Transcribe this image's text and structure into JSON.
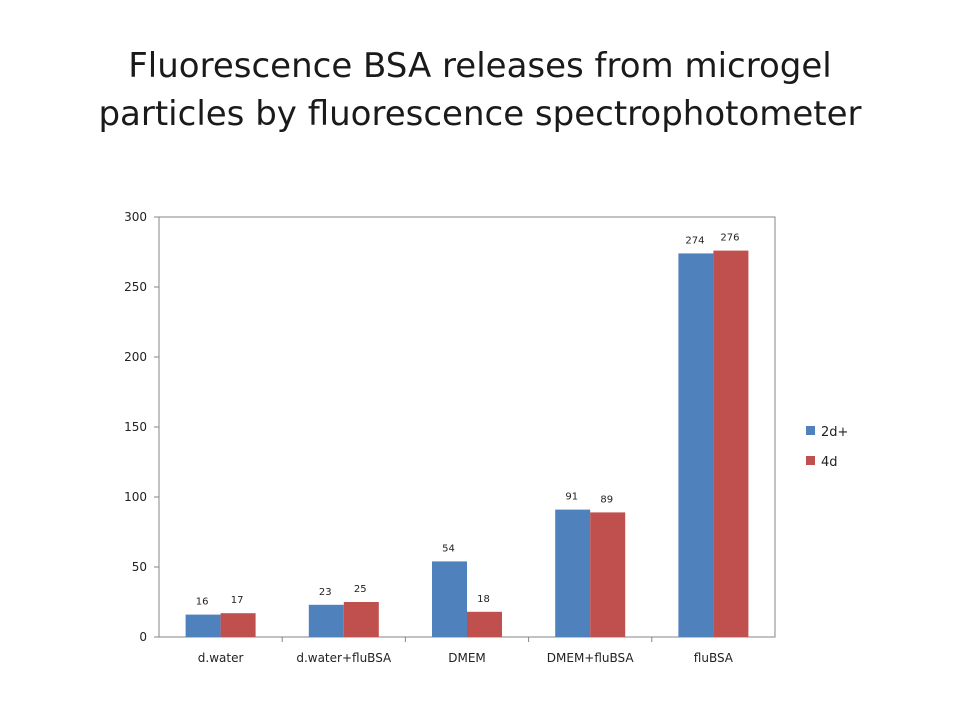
{
  "title": {
    "line1": "Fluorescence BSA releases from microgel",
    "line2": "particles by fluorescence spectrophotometer"
  },
  "chart_data": {
    "type": "bar",
    "title": "Fluorescence BSA releases from microgel particles by fluorescence spectrophotometer",
    "categories": [
      "d.water",
      "d.water+fluBSA",
      "DMEM",
      "DMEM+fluBSA",
      "fluBSA"
    ],
    "series": [
      {
        "name": "2d+",
        "color": "#4f81bd",
        "values": [
          16,
          23,
          54,
          91,
          274
        ]
      },
      {
        "name": "4d",
        "color": "#c0504d",
        "values": [
          17,
          25,
          18,
          89,
          276
        ]
      }
    ],
    "ylim": [
      0,
      300
    ],
    "yticks": [
      0,
      50,
      100,
      150,
      200,
      250,
      300
    ],
    "xlabel": "",
    "ylabel": "",
    "legend": "right",
    "grid": false,
    "data_labels": true
  }
}
